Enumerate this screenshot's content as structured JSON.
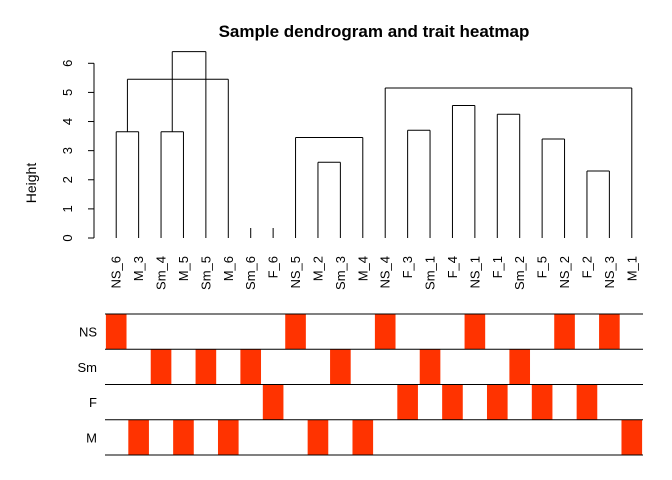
{
  "chart_data": {
    "type": "dendrogram-heatmap",
    "title": "Sample dendrogram and trait heatmap",
    "ylabel": "Height",
    "ylim": [
      0,
      6.8
    ],
    "yticks": [
      0,
      1,
      2,
      3,
      4,
      5,
      6
    ],
    "leaves": [
      "NS_6",
      "M_3",
      "Sm_4",
      "M_5",
      "Sm_5",
      "M_6",
      "Sm_6",
      "F_6",
      "NS_5",
      "M_2",
      "Sm_3",
      "M_4",
      "NS_4",
      "F_3",
      "Sm_1",
      "F_4",
      "NS_1",
      "F_1",
      "Sm_2",
      "F_5",
      "NS_2",
      "F_2",
      "NS_3",
      "M_1"
    ],
    "merges": [
      {
        "left": 0,
        "right": 1,
        "height": 3.65
      },
      {
        "left": 2,
        "right": 3,
        "height": 3.65
      },
      {
        "left": 9,
        "right": 10,
        "height": 2.6
      },
      {
        "left": 8,
        "right": 11,
        "height": 3.45
      },
      {
        "left": 13,
        "right": 14,
        "height": 3.7
      },
      {
        "left": 21,
        "right": 22,
        "height": 2.3
      },
      {
        "left": 19,
        "right": 20,
        "height": 3.4
      },
      {
        "left": 17,
        "right": 18,
        "height": 4.25
      },
      {
        "left": 15,
        "right": 16,
        "height": 4.55
      },
      {
        "left": 12,
        "right": 23,
        "height": 5.15
      },
      {
        "left": 5,
        "right": 24,
        "height": 5.45
      },
      {
        "left": 4,
        "right": 25,
        "height": 6.4
      }
    ],
    "traits": [
      "NS",
      "Sm",
      "F",
      "M"
    ],
    "trait_matrix": [
      [
        1,
        0,
        0,
        0,
        0,
        0,
        0,
        0,
        1,
        0,
        0,
        0,
        1,
        0,
        0,
        0,
        1,
        0,
        0,
        0,
        1,
        0,
        1,
        0
      ],
      [
        0,
        0,
        1,
        0,
        1,
        0,
        1,
        0,
        0,
        0,
        1,
        0,
        0,
        0,
        1,
        0,
        0,
        0,
        1,
        0,
        0,
        0,
        0,
        0
      ],
      [
        0,
        0,
        0,
        0,
        0,
        0,
        0,
        1,
        0,
        0,
        0,
        0,
        0,
        1,
        0,
        1,
        0,
        1,
        0,
        1,
        0,
        1,
        0,
        0
      ],
      [
        0,
        1,
        0,
        1,
        0,
        1,
        0,
        0,
        0,
        1,
        0,
        1,
        0,
        0,
        0,
        0,
        0,
        0,
        0,
        0,
        0,
        0,
        0,
        1
      ]
    ],
    "colors": {
      "present": "#FF3300",
      "absent": "#FFFFFF",
      "line": "#000000"
    }
  }
}
